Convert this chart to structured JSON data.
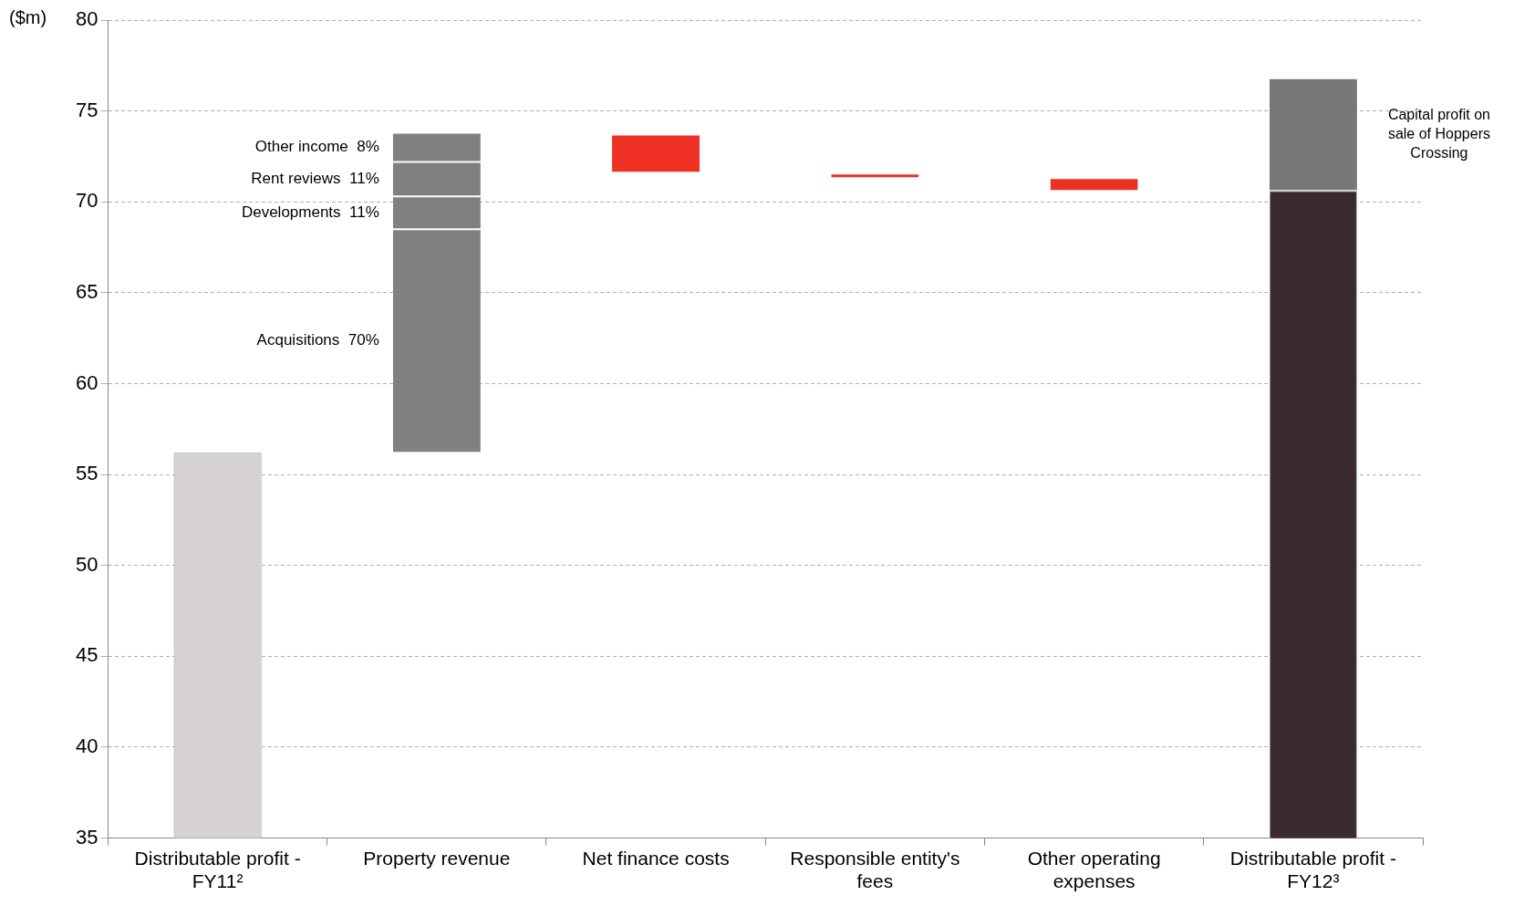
{
  "chart_data": {
    "type": "bar",
    "ylabel": "($m)",
    "categories": [
      "Distributable profit - FY11²",
      "Property revenue",
      "Net finance costs",
      "Responsible entity's fees",
      "Other operating expenses",
      "Distributable profit - FY12³"
    ],
    "series": [
      {
        "colors": [
          "#d6d2d3",
          null,
          null,
          null,
          null,
          "#3a2a30"
        ],
        "values": [
          56.2,
          null,
          null,
          null,
          null,
          70.6
        ]
      },
      {
        "name": "Acquisitions  70%",
        "color": "#808080",
        "values": [
          null,
          12.3,
          null,
          null,
          null,
          null
        ],
        "base": [
          null,
          56.2,
          null,
          null,
          null,
          null
        ]
      },
      {
        "name": "Developments  11%",
        "color": "#808080",
        "values": [
          null,
          1.8,
          null,
          null,
          null,
          null
        ],
        "base": [
          null,
          68.5,
          null,
          null,
          null,
          null
        ]
      },
      {
        "name": "Rent reviews  11%",
        "color": "#808080",
        "values": [
          null,
          1.9,
          null,
          null,
          null,
          null
        ],
        "base": [
          null,
          70.3,
          null,
          null,
          null,
          null
        ]
      },
      {
        "name": "Other income  8%",
        "color": "#808080",
        "values": [
          null,
          1.6,
          null,
          null,
          null,
          null
        ],
        "base": [
          null,
          72.2,
          null,
          null,
          null,
          null
        ]
      },
      {
        "color": "#ee3124",
        "values": [
          null,
          null,
          -2.1,
          -0.25,
          -0.7,
          null
        ],
        "base": [
          null,
          null,
          73.7,
          71.55,
          71.3,
          null
        ]
      },
      {
        "name": "Capital profit on sale of Hoppers Crossing",
        "color": "#777777",
        "values": [
          null,
          null,
          null,
          null,
          null,
          6.2
        ],
        "base": [
          null,
          null,
          null,
          null,
          null,
          70.6
        ]
      }
    ],
    "ylim": [
      35,
      80
    ],
    "yticks": [
      35,
      40,
      45,
      50,
      55,
      60,
      65,
      70,
      75,
      80
    ],
    "grid": "y",
    "legend": false
  }
}
